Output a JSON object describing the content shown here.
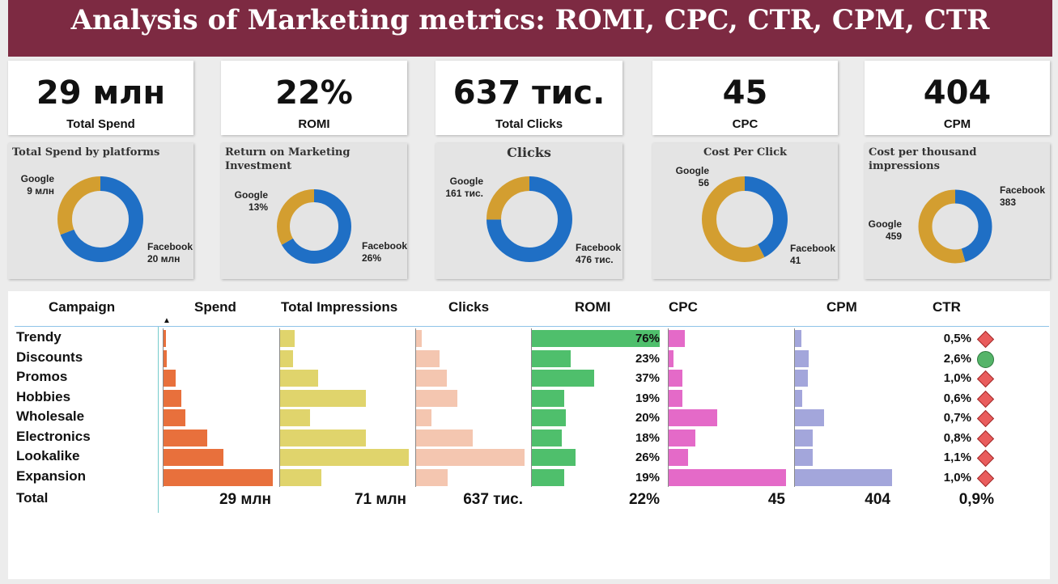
{
  "title": "Analysis of Marketing metrics: ROMI, CPC, CTR, CPM, CTR",
  "kpis": [
    {
      "value": "29 млн",
      "label": "Total Spend"
    },
    {
      "value": "22%",
      "label": "ROMI"
    },
    {
      "value": "637 тис.",
      "label": "Total Clicks"
    },
    {
      "value": "45",
      "label": "CPC"
    },
    {
      "value": "404",
      "label": "CPM"
    }
  ],
  "colors": {
    "facebook": "#1f6fc5",
    "google": "#d39e30",
    "header": "#7d2a42"
  },
  "donuts": [
    {
      "title": "Total Spend by platforms",
      "google": {
        "name": "Google",
        "label": "9 млн",
        "value": 9
      },
      "facebook": {
        "name": "Facebook",
        "label": "20 млн",
        "value": 20
      }
    },
    {
      "title": "Return on Marketing Investment",
      "google": {
        "name": "Google",
        "label": "13%",
        "value": 13
      },
      "facebook": {
        "name": "Facebook",
        "label": "26%",
        "value": 26
      }
    },
    {
      "title": "Clicks",
      "google": {
        "name": "Google",
        "label": "161 тис.",
        "value": 161
      },
      "facebook": {
        "name": "Facebook",
        "label": "476 тис.",
        "value": 476
      }
    },
    {
      "title": "Cost Per Click",
      "google": {
        "name": "Google",
        "label": "56",
        "value": 56
      },
      "facebook": {
        "name": "Facebook",
        "label": "41",
        "value": 41
      }
    },
    {
      "title": "Cost per thousand impressions",
      "google": {
        "name": "Google",
        "label": "459",
        "value": 459
      },
      "facebook": {
        "name": "Facebook",
        "label": "383",
        "value": 383
      }
    }
  ],
  "table": {
    "headers": {
      "campaign": "Campaign",
      "spend": "Spend",
      "impressions": "Total Impressions",
      "clicks": "Clicks",
      "romi": "ROMI",
      "cpc": "CPC",
      "cpm": "CPM",
      "ctr": "CTR"
    },
    "total_label": "Total",
    "totals": {
      "spend": "29 млн",
      "impressions": "71 млн",
      "clicks": "637 тис.",
      "romi": "22%",
      "cpc": "45",
      "cpm": "404",
      "ctr": "0,9%"
    }
  },
  "chart_data": {
    "type": "table",
    "categories": [
      "Trendy",
      "Discounts",
      "Promos",
      "Hobbies",
      "Wholesale",
      "Electronics",
      "Lookalike",
      "Expansion"
    ],
    "series": [
      {
        "name": "Spend",
        "values": [
          0.2,
          0.3,
          1.1,
          1.6,
          2.0,
          4.0,
          5.5,
          10.0
        ]
      },
      {
        "name": "Total Impressions",
        "values": [
          2.0,
          1.7,
          5.1,
          11.5,
          4.0,
          11.5,
          17.3,
          5.6
        ]
      },
      {
        "name": "Clicks",
        "values": [
          8,
          33,
          42,
          57,
          21,
          78,
          150,
          44
        ]
      },
      {
        "name": "ROMI",
        "values": [
          76,
          23,
          37,
          19,
          20,
          18,
          26,
          19
        ],
        "labels": [
          "76%",
          "23%",
          "37%",
          "19%",
          "20%",
          "18%",
          "26%",
          "19%"
        ]
      },
      {
        "name": "CPC",
        "values": [
          20,
          6,
          17,
          17,
          60,
          33,
          24,
          145
        ]
      },
      {
        "name": "CPM",
        "values": [
          55,
          115,
          110,
          65,
          250,
          155,
          150,
          835
        ]
      },
      {
        "name": "CTR",
        "values": [
          0.5,
          2.6,
          1.0,
          0.6,
          0.7,
          0.8,
          1.1,
          1.0
        ],
        "labels": [
          "0,5%",
          "2,6%",
          "1,0%",
          "0,6%",
          "0,7%",
          "0,8%",
          "1,1%",
          "1,0%"
        ],
        "status": [
          "bad",
          "good",
          "bad",
          "bad",
          "bad",
          "bad",
          "bad",
          "bad"
        ]
      }
    ]
  }
}
